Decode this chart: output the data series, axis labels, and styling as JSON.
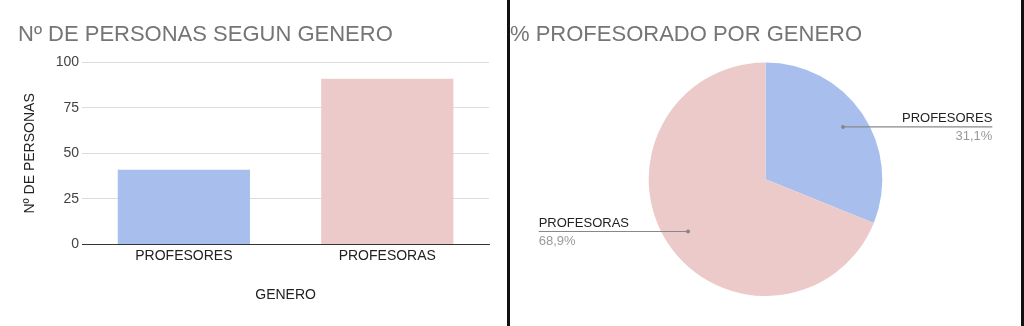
{
  "chart_data": [
    {
      "type": "bar",
      "title": "Nº DE PERSONAS SEGUN GENERO",
      "xlabel": "GENERO",
      "ylabel": "Nº DE PERSONAS",
      "categories": [
        "PROFESORES",
        "PROFESORAS"
      ],
      "values": [
        41,
        91
      ],
      "colors": [
        "#a8bfed",
        "#edcaca"
      ],
      "ylim": [
        0,
        100
      ],
      "yticks": [
        0,
        25,
        50,
        75,
        100
      ],
      "grid": "y",
      "legend": false
    },
    {
      "type": "pie",
      "title": "% PROFESORADO POR GENERO",
      "categories": [
        "PROFESORES",
        "PROFESORAS"
      ],
      "values": [
        31.1,
        68.9
      ],
      "colors": [
        "#a8bfed",
        "#edcaca"
      ],
      "value_labels": [
        "31,1%",
        "68,9%"
      ],
      "legend": false
    }
  ]
}
